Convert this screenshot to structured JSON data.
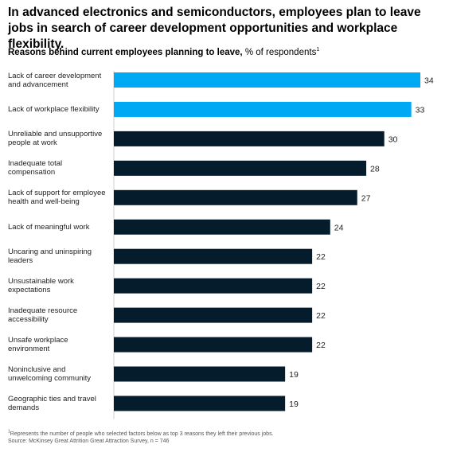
{
  "title": "In advanced electronics and semiconductors, employees plan to leave jobs in search of career development opportunities and workplace flexibility.",
  "subtitle": {
    "bold": "Reasons behind current employees planning to leave,",
    "normal": "% of respondents",
    "sup": "1"
  },
  "footnote": {
    "sup": "1",
    "line1": "Represents the number of people who selected factors below as top 3 reasons they left their previous jobs.",
    "line2": "Source: McKinsey Great Attrition Great Attraction Survey, n = 746"
  },
  "colors": {
    "highlight": "#00a9f4",
    "default": "#051c2c"
  },
  "chart_data": {
    "type": "bar",
    "orientation": "horizontal",
    "categories": [
      "Lack of career development and advancement",
      "Lack of workplace flexibility",
      "Unreliable and unsupportive people at work",
      "Inadequate total compensation",
      "Lack of support for employee health and well-being",
      "Lack of meaningful work",
      "Uncaring and uninspiring leaders",
      "Unsustainable work expectations",
      "Inadequate resource accessibility",
      "Unsafe workplace environment",
      "Noninclusive and unwelcoming community",
      "Geographic ties and travel demands"
    ],
    "values": [
      34,
      33,
      30,
      28,
      27,
      24,
      22,
      22,
      22,
      22,
      19,
      19
    ],
    "highlighted": [
      true,
      true,
      false,
      false,
      false,
      false,
      false,
      false,
      false,
      false,
      false,
      false
    ],
    "xlim": [
      0,
      34
    ],
    "grid": false,
    "legend": "none"
  }
}
